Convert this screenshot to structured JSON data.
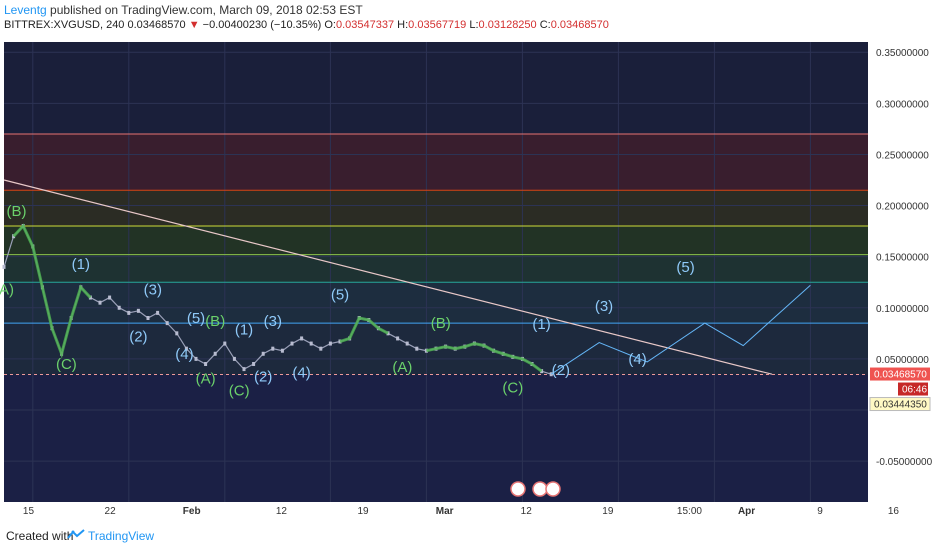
{
  "header": {
    "author": "Leventg",
    "published_text": "published on TradingView.com, March 09, 2018 02:53 EST",
    "symbol": "BITTREX:XVGUSD, 240",
    "last": "0.03468570",
    "change": "−0.00400230 (−10.35%)",
    "o_label": "O:",
    "o": "0.03547337",
    "h_label": "H:",
    "h": "0.03567719",
    "l_label": "L:",
    "l": "0.03128250",
    "c_label": "C:",
    "c": "0.03468570"
  },
  "footer": {
    "created_with": "Created with",
    "brand": "TradingView"
  },
  "colors": {
    "background": "#1a1f3a",
    "grid": "#2c3354",
    "price_tag": "#ef5350",
    "bands": [
      "#3a1f2e",
      "#2f1c28",
      "#2a2a1e",
      "#233023",
      "#1f3030"
    ]
  },
  "chart_data": {
    "type": "line",
    "title": "",
    "xlabel": "",
    "ylabel": "",
    "x_ticks": [
      "15",
      "22",
      "Feb",
      "12",
      "19",
      "Mar",
      "12",
      "19",
      "15:00",
      "Apr",
      "9",
      "16"
    ],
    "y_ticks": [
      "0.35000000",
      "0.30000000",
      "0.25000000",
      "0.20000000",
      "0.15000000",
      "0.10000000",
      "0.05000000",
      "-0.05000000"
    ],
    "ylim": [
      -0.09,
      0.36
    ],
    "grid": true,
    "current_price_label": "0.03468570",
    "time_label": "06:46",
    "lower_price_label": "0.03444350",
    "horizontal_levels": [
      0.27,
      0.215,
      0.18,
      0.152,
      0.125,
      0.085,
      0.0347
    ],
    "price_series": {
      "name": "",
      "points": [
        [
          0,
          0.14
        ],
        [
          1,
          0.17
        ],
        [
          2,
          0.18
        ],
        [
          3,
          0.16
        ],
        [
          4,
          0.12
        ],
        [
          5,
          0.08
        ],
        [
          6,
          0.055
        ],
        [
          7,
          0.09
        ],
        [
          8,
          0.12
        ],
        [
          9,
          0.11
        ],
        [
          10,
          0.105
        ],
        [
          11,
          0.11
        ],
        [
          12,
          0.1
        ],
        [
          13,
          0.095
        ],
        [
          14,
          0.097
        ],
        [
          15,
          0.09
        ],
        [
          16,
          0.095
        ],
        [
          17,
          0.085
        ],
        [
          18,
          0.075
        ],
        [
          19,
          0.06
        ],
        [
          20,
          0.05
        ],
        [
          21,
          0.045
        ],
        [
          22,
          0.055
        ],
        [
          23,
          0.065
        ],
        [
          24,
          0.05
        ],
        [
          25,
          0.04
        ],
        [
          26,
          0.045
        ],
        [
          27,
          0.055
        ],
        [
          28,
          0.06
        ],
        [
          29,
          0.058
        ],
        [
          30,
          0.065
        ],
        [
          31,
          0.07
        ],
        [
          32,
          0.065
        ],
        [
          33,
          0.06
        ],
        [
          34,
          0.065
        ],
        [
          35,
          0.067
        ],
        [
          36,
          0.07
        ],
        [
          37,
          0.09
        ],
        [
          38,
          0.088
        ],
        [
          39,
          0.08
        ],
        [
          40,
          0.075
        ],
        [
          41,
          0.07
        ],
        [
          42,
          0.065
        ],
        [
          43,
          0.06
        ],
        [
          44,
          0.058
        ],
        [
          45,
          0.06
        ],
        [
          46,
          0.062
        ],
        [
          47,
          0.06
        ],
        [
          48,
          0.062
        ],
        [
          49,
          0.065
        ],
        [
          50,
          0.063
        ],
        [
          51,
          0.058
        ],
        [
          52,
          0.055
        ],
        [
          53,
          0.052
        ],
        [
          54,
          0.05
        ],
        [
          55,
          0.045
        ],
        [
          56,
          0.038
        ],
        [
          57,
          0.035
        ]
      ]
    },
    "projection_series": {
      "name": "",
      "points": [
        [
          57,
          0.035
        ],
        [
          62,
          0.066
        ],
        [
          67,
          0.047
        ],
        [
          73,
          0.085
        ],
        [
          77,
          0.063
        ],
        [
          84,
          0.122
        ]
      ]
    },
    "trendline": {
      "points": [
        [
          0,
          0.225
        ],
        [
          80,
          0.035
        ]
      ]
    },
    "wave_labels": [
      {
        "text": "(B)",
        "x": 1.3,
        "y": 0.19,
        "color": "green"
      },
      {
        "text": "(A)",
        "x": 0,
        "y": 0.113,
        "color": "green"
      },
      {
        "text": "(1)",
        "x": 8,
        "y": 0.138,
        "color": "blue"
      },
      {
        "text": "(C)",
        "x": 6.5,
        "y": 0.04,
        "color": "green"
      },
      {
        "text": "(3)",
        "x": 15.5,
        "y": 0.113,
        "color": "blue"
      },
      {
        "text": "(2)",
        "x": 14,
        "y": 0.067,
        "color": "blue"
      },
      {
        "text": "(5)",
        "x": 20,
        "y": 0.085,
        "color": "blue"
      },
      {
        "text": "(4)",
        "x": 18.8,
        "y": 0.05,
        "color": "blue"
      },
      {
        "text": "(B)",
        "x": 22,
        "y": 0.082,
        "color": "green"
      },
      {
        "text": "(A)",
        "x": 21,
        "y": 0.026,
        "color": "green"
      },
      {
        "text": "(1)",
        "x": 25,
        "y": 0.074,
        "color": "blue"
      },
      {
        "text": "(3)",
        "x": 28,
        "y": 0.082,
        "color": "blue"
      },
      {
        "text": "(C)",
        "x": 24.5,
        "y": 0.014,
        "color": "green"
      },
      {
        "text": "(2)",
        "x": 27,
        "y": 0.028,
        "color": "blue"
      },
      {
        "text": "(4)",
        "x": 31,
        "y": 0.032,
        "color": "blue"
      },
      {
        "text": "(5)",
        "x": 35,
        "y": 0.108,
        "color": "blue"
      },
      {
        "text": "(A)",
        "x": 41.5,
        "y": 0.037,
        "color": "green"
      },
      {
        "text": "(B)",
        "x": 45.5,
        "y": 0.08,
        "color": "green"
      },
      {
        "text": "(C)",
        "x": 53,
        "y": 0.017,
        "color": "green"
      },
      {
        "text": "(1)",
        "x": 56,
        "y": 0.079,
        "color": "blue"
      },
      {
        "text": "(2)",
        "x": 58,
        "y": 0.034,
        "color": "blue"
      },
      {
        "text": "(3)",
        "x": 62.5,
        "y": 0.097,
        "color": "blue"
      },
      {
        "text": "(4)",
        "x": 66,
        "y": 0.045,
        "color": "blue"
      },
      {
        "text": "(5)",
        "x": 71,
        "y": 0.135,
        "color": "blue"
      }
    ]
  }
}
